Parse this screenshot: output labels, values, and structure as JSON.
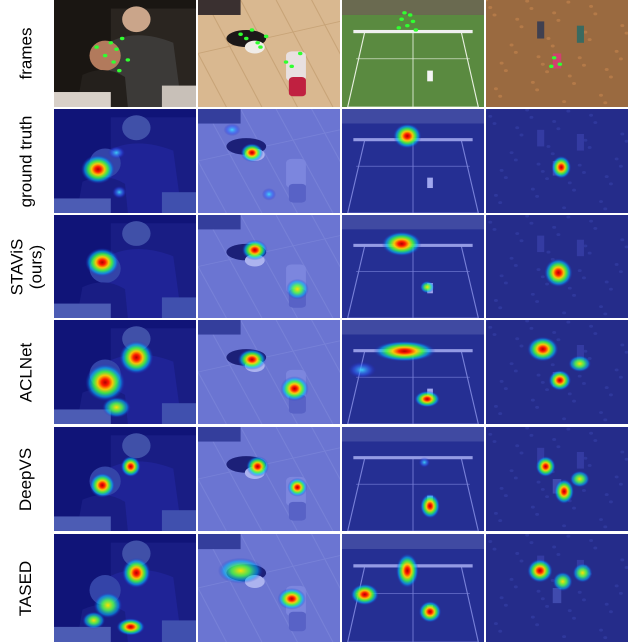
{
  "figure": {
    "rows": [
      {
        "id": "frames",
        "label": "frames",
        "kind": "frames"
      },
      {
        "id": "ground-truth",
        "label": "ground truth",
        "kind": "heat"
      },
      {
        "id": "stavis",
        "label": "STAViS\n(ours)",
        "kind": "heat"
      },
      {
        "id": "aclnet",
        "label": "ACLNet",
        "kind": "heat"
      },
      {
        "id": "deepvs",
        "label": "DeepVS",
        "kind": "heat"
      },
      {
        "id": "tased",
        "label": "TASED",
        "kind": "heat"
      }
    ],
    "columns": [
      {
        "id": "movie-scene",
        "scene": "dim interior, two men in suits"
      },
      {
        "id": "dog-scene",
        "scene": "dog on tiled floor, child with toy"
      },
      {
        "id": "tennis-scene",
        "scene": "grass tennis court, players"
      },
      {
        "id": "park-scene",
        "scene": "children playing in autumn leaves"
      }
    ],
    "colors": {
      "heat_low": "#1a1aa0",
      "heat_mid1": "#00c8ff",
      "heat_mid2": "#30ff40",
      "heat_mid3": "#ffe000",
      "heat_high": "#ff1000",
      "fixation_dots": "#30ff30"
    }
  }
}
